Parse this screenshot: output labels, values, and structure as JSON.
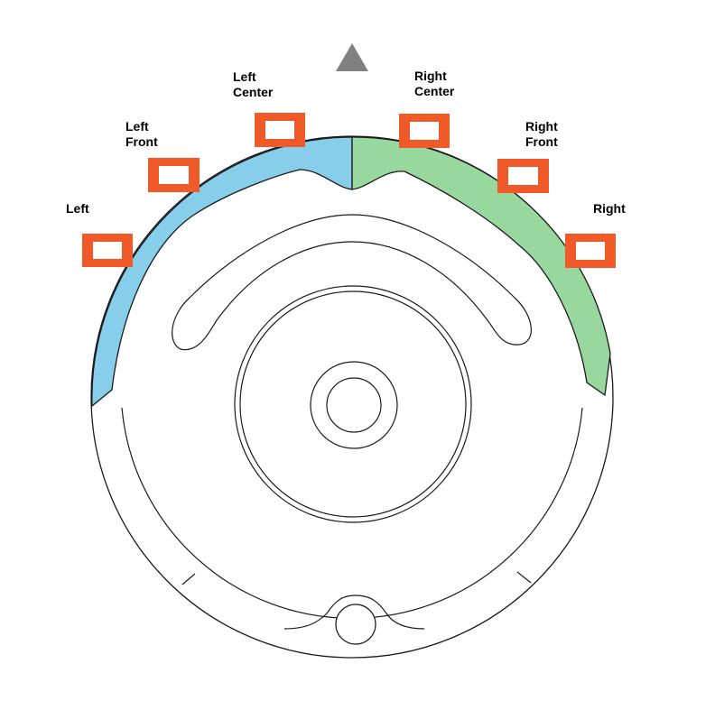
{
  "colors": {
    "left_bumper": "#87CEEB",
    "right_bumper": "#98D89E",
    "sensor": "#F05A28",
    "outline": "#1a1a1a",
    "direction_arrow": "#808080"
  },
  "icons": {
    "direction": "triangle-up-icon"
  },
  "sensors": [
    {
      "id": "left",
      "label": "Left"
    },
    {
      "id": "left-front",
      "label": "Left\nFront"
    },
    {
      "id": "left-center",
      "label": "Left\nCenter"
    },
    {
      "id": "right-center",
      "label": "Right\nCenter"
    },
    {
      "id": "right-front",
      "label": "Right\nFront"
    },
    {
      "id": "right",
      "label": "Right"
    }
  ]
}
